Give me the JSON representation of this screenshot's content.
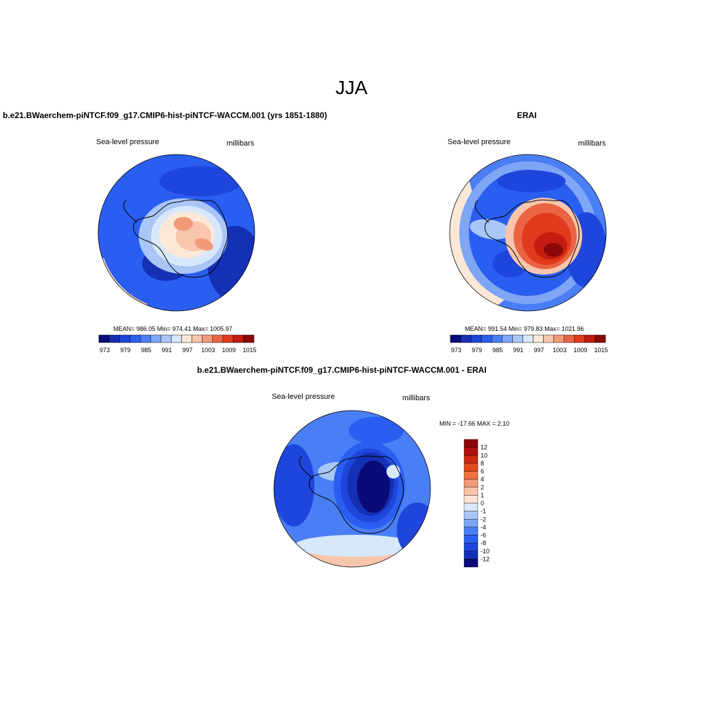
{
  "figure": {
    "title": "JJA"
  },
  "colors": {
    "scale": [
      "#0a0a78",
      "#1430b4",
      "#1e46dc",
      "#2a5ef0",
      "#4a7ef5",
      "#7fa6f5",
      "#a9c6f7",
      "#d8e8fb",
      "#fde8d8",
      "#f8c6ac",
      "#f29a78",
      "#ea6444",
      "#e03a1c",
      "#c41c10",
      "#8c0808"
    ],
    "ocean_deep": "#0f2aa8",
    "ocean_mid": "#2a5ef0",
    "land_outline": "#000000"
  },
  "panels": {
    "model": {
      "title": "b.e21.BWaerchem-piNTCF.f09_g17.CMIP6-hist-piNTCF-WACCM.001 (yrs 1851-1880)",
      "variable": "Sea-level pressure",
      "units": "millibars",
      "stats": "MEAN= 986.05  Min= 974.41  Max= 1005.97"
    },
    "obs": {
      "title": "ERAI",
      "variable": "Sea-level pressure",
      "units": "millibars",
      "stats": "MEAN= 991.54  Min= 979.83  Max= 1021.96"
    },
    "diff": {
      "title": "b.e21.BWaerchem-piNTCF.f09_g17.CMIP6-hist-piNTCF-WACCM.001 - ERAI",
      "variable": "Sea-level pressure",
      "units": "millibars",
      "stats": "MIN = -17.66 MAX =   2.10"
    }
  },
  "colorbars": {
    "horizontal_labels": [
      "973",
      "979",
      "985",
      "991",
      "997",
      "1003",
      "1009",
      "1015"
    ],
    "vertical_labels": [
      "12",
      "10",
      "8",
      "6",
      "4",
      "2",
      "1",
      "0",
      "-1",
      "-2",
      "-4",
      "-6",
      "-8",
      "-10",
      "-12"
    ]
  }
}
